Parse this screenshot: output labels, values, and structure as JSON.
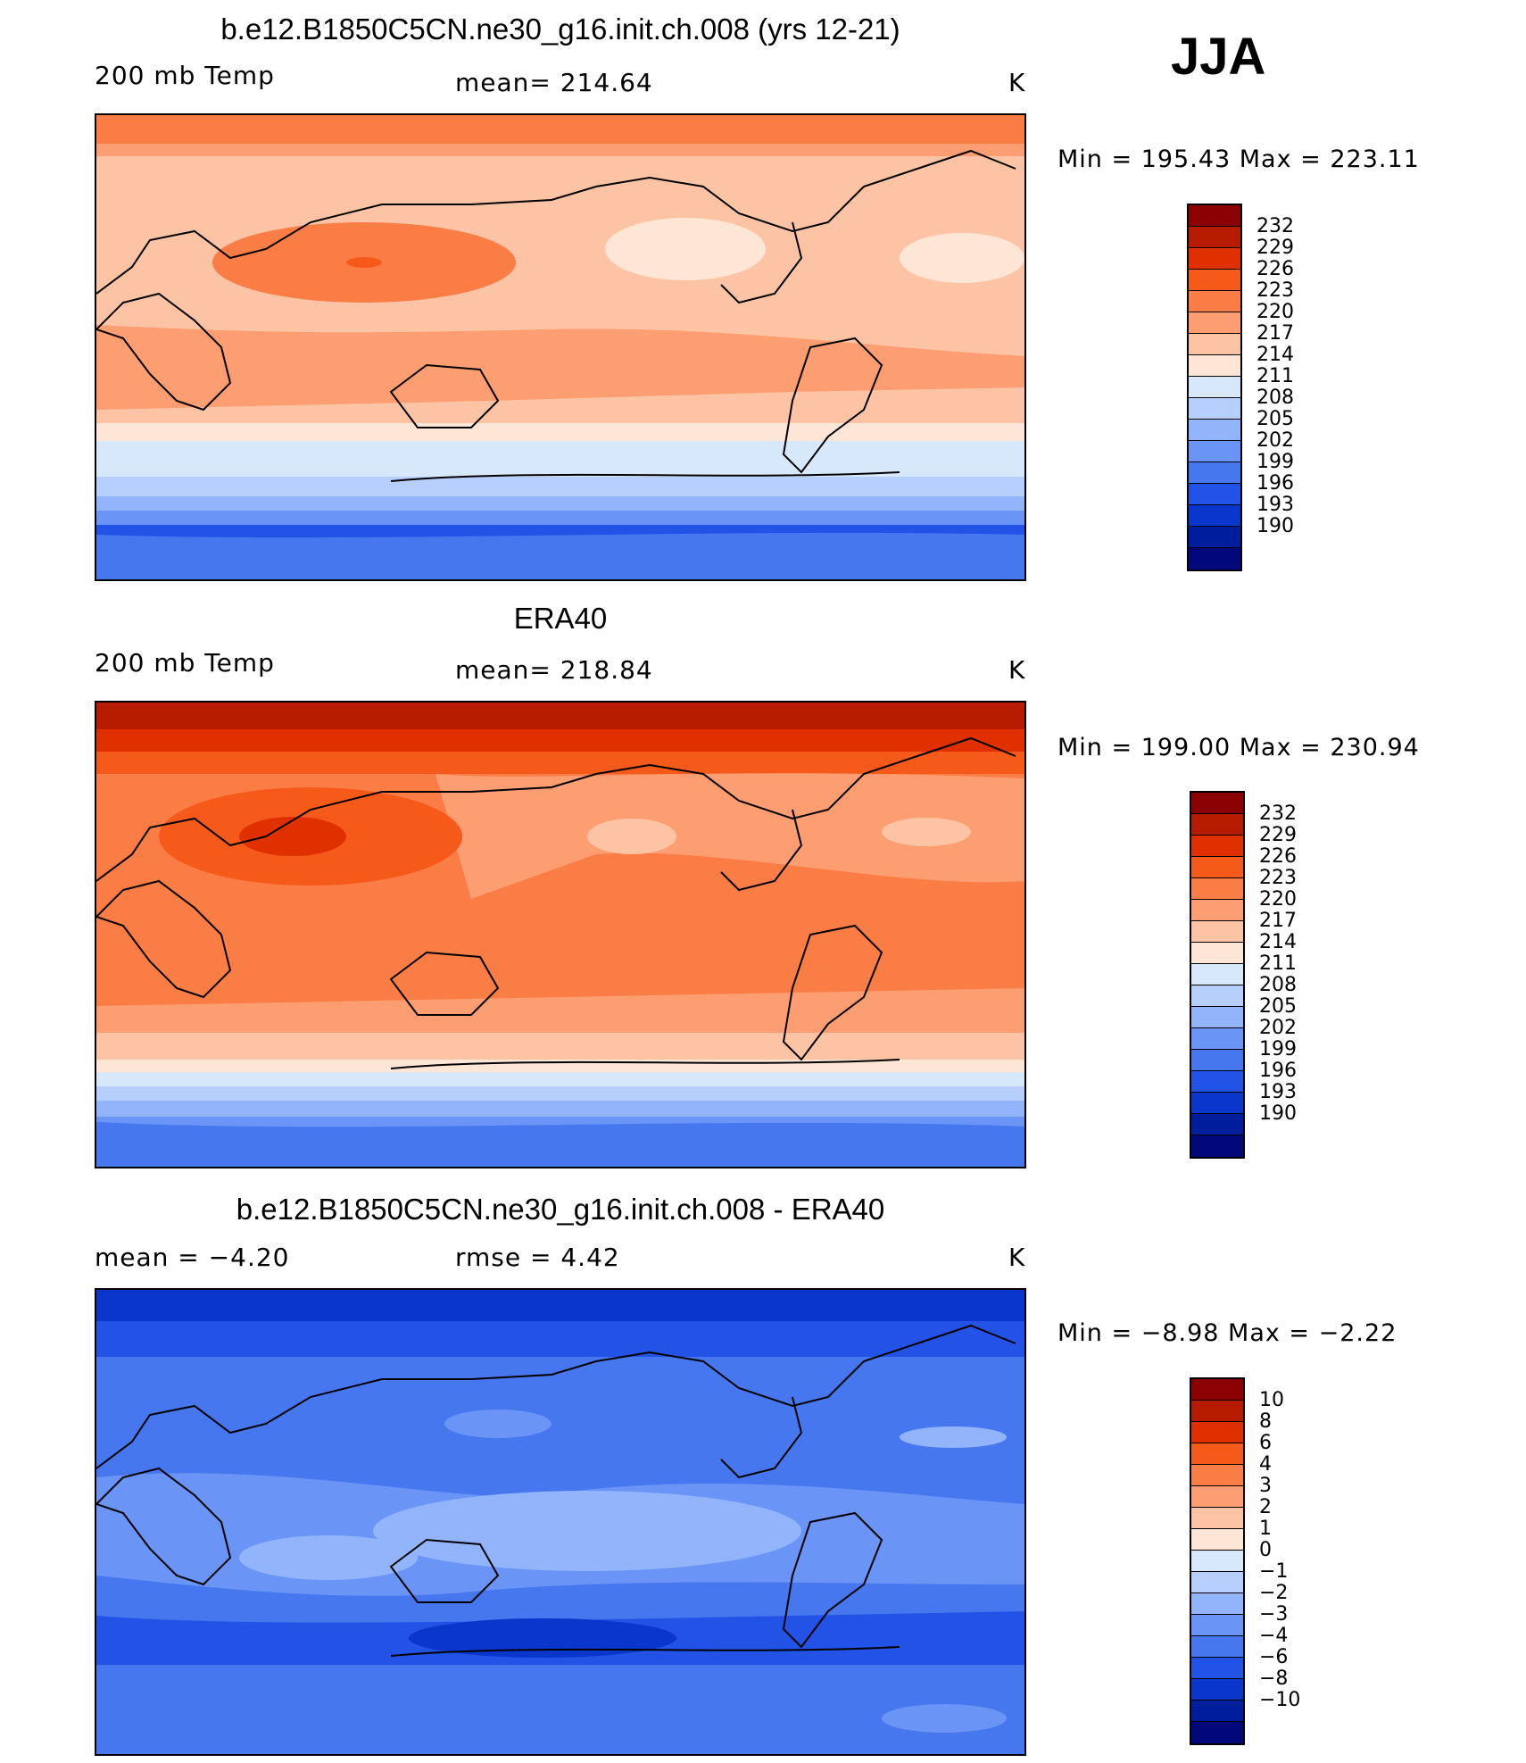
{
  "season": "JJA",
  "panels": [
    {
      "title": "b.e12.B1850C5CN.ne30_g16.init.ch.008 (yrs 12-21)",
      "left_label": "200 mb Temp",
      "center_label": "mean=  214.64",
      "units": "K",
      "minmax": "Min  =  195.43  Max  =  223.11"
    },
    {
      "title": "ERA40",
      "left_label": "200 mb Temp",
      "center_label": "mean=  218.84",
      "units": "K",
      "minmax": "Min  =  199.00  Max  =  230.94"
    },
    {
      "title": "b.e12.B1850C5CN.ne30_g16.init.ch.008 - ERA40",
      "left_label": "mean  =    −4.20",
      "center_label": "rmse  =      4.42",
      "units": "K",
      "minmax": "Min  =    −8.98  Max  =    −2.22"
    }
  ],
  "colorbars": {
    "temp": {
      "labels": [
        "232",
        "229",
        "226",
        "223",
        "220",
        "217",
        "214",
        "211",
        "208",
        "205",
        "202",
        "199",
        "196",
        "193",
        "190"
      ],
      "colors": [
        "#8b0000",
        "#b81c00",
        "#e03000",
        "#f55a1a",
        "#fa7d45",
        "#fc9d72",
        "#fcc4a4",
        "#fde6d6",
        "#d8e8fb",
        "#b6cffc",
        "#92b4fa",
        "#6a94f5",
        "#4677ef",
        "#2353e6",
        "#0b36cc",
        "#001d9e",
        "#00087a"
      ]
    },
    "diff": {
      "labels": [
        "10",
        "8",
        "6",
        "4",
        "3",
        "2",
        "1",
        "0",
        "−1",
        "−2",
        "−3",
        "−4",
        "−6",
        "−8",
        "−10"
      ],
      "colors": [
        "#8b0000",
        "#b81c00",
        "#e03000",
        "#f55a1a",
        "#fa7d45",
        "#fc9d72",
        "#fcc4a4",
        "#fde6d6",
        "#d8e8fb",
        "#b6cffc",
        "#92b4fa",
        "#6a94f5",
        "#4677ef",
        "#2353e6",
        "#0b36cc",
        "#001d9e",
        "#00087a"
      ]
    }
  },
  "chart_data": [
    {
      "type": "heatmap",
      "title": "b.e12.B1850C5CN.ne30_g16.init.ch.008 (yrs 12-21)",
      "variable": "200 mb Temp",
      "units": "K",
      "mean": 214.64,
      "min": 195.43,
      "max": 223.11,
      "contour_levels": [
        190,
        193,
        196,
        199,
        202,
        205,
        208,
        211,
        214,
        217,
        220,
        223,
        226,
        229,
        232
      ],
      "zonal_bands": [
        {
          "lat_range": [
            90,
            70
          ],
          "value": 221.5
        },
        {
          "lat_range": [
            70,
            45
          ],
          "value": 218.5
        },
        {
          "lat_range": [
            45,
            20
          ],
          "value": 216.5
        },
        {
          "lat_range": [
            20,
            -25
          ],
          "value": 218.0
        },
        {
          "lat_range": [
            -25,
            -40
          ],
          "value": 214.5
        },
        {
          "lat_range": [
            -40,
            -50
          ],
          "value": 209.5
        },
        {
          "lat_range": [
            -50,
            -60
          ],
          "value": 203.5
        },
        {
          "lat_range": [
            -60,
            -90
          ],
          "value": 197.5
        }
      ]
    },
    {
      "type": "heatmap",
      "title": "ERA40",
      "variable": "200 mb Temp",
      "units": "K",
      "mean": 218.84,
      "min": 199.0,
      "max": 230.94,
      "contour_levels": [
        190,
        193,
        196,
        199,
        202,
        205,
        208,
        211,
        214,
        217,
        220,
        223,
        226,
        229,
        232
      ],
      "zonal_bands": [
        {
          "lat_range": [
            90,
            75
          ],
          "value": 227.5
        },
        {
          "lat_range": [
            75,
            60
          ],
          "value": 224.5
        },
        {
          "lat_range": [
            60,
            45
          ],
          "value": 221.5
        },
        {
          "lat_range": [
            45,
            -30
          ],
          "value": 221.5
        },
        {
          "lat_range": [
            -30,
            -45
          ],
          "value": 218.5
        },
        {
          "lat_range": [
            -45,
            -52
          ],
          "value": 212.5
        },
        {
          "lat_range": [
            -52,
            -60
          ],
          "value": 206.5
        },
        {
          "lat_range": [
            -60,
            -90
          ],
          "value": 200.5
        }
      ]
    },
    {
      "type": "heatmap",
      "title": "b.e12.B1850C5CN.ne30_g16.init.ch.008 - ERA40",
      "units": "K",
      "mean": -4.2,
      "rmse": 4.42,
      "min": -8.98,
      "max": -2.22,
      "contour_levels": [
        -10,
        -8,
        -6,
        -4,
        -3,
        -2,
        -1,
        0,
        1,
        2,
        3,
        4,
        6,
        8,
        10
      ],
      "zonal_bands": [
        {
          "lat_range": [
            90,
            70
          ],
          "value": -7.0
        },
        {
          "lat_range": [
            70,
            30
          ],
          "value": -5.0
        },
        {
          "lat_range": [
            30,
            -30
          ],
          "value": -3.5
        },
        {
          "lat_range": [
            -30,
            -60
          ],
          "value": -5.0
        },
        {
          "lat_range": [
            -60,
            -90
          ],
          "value": -4.5
        }
      ]
    }
  ]
}
